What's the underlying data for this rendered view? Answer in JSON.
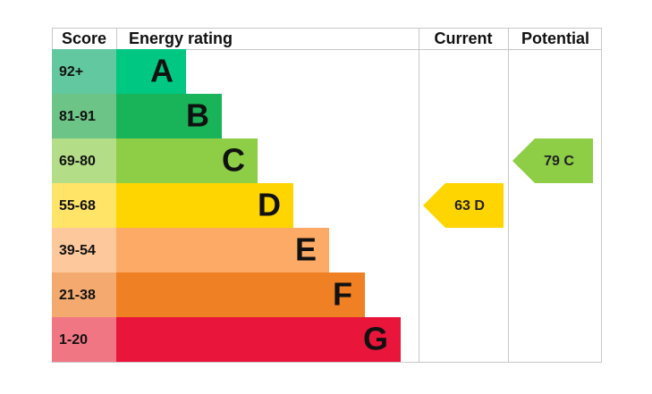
{
  "headers": [
    "Score",
    "Energy rating",
    "Current",
    "Potential"
  ],
  "ratings": [
    {
      "score": "92+",
      "band": "A",
      "color": "#00c781",
      "score_color": "#62c8a0"
    },
    {
      "score": "81-91",
      "band": "B",
      "color": "#19b459",
      "score_color": "#6cc486"
    },
    {
      "score": "69-80",
      "band": "C",
      "color": "#8dce46",
      "score_color": "#b4dd88"
    },
    {
      "score": "55-68",
      "band": "D",
      "color": "#ffd500",
      "score_color": "#ffe468"
    },
    {
      "score": "39-54",
      "band": "E",
      "color": "#fcaa65",
      "score_color": "#fdc89b"
    },
    {
      "score": "21-38",
      "band": "F",
      "color": "#ef8023",
      "score_color": "#f4aa6e"
    },
    {
      "score": "1-20",
      "band": "G",
      "color": "#e9153b",
      "score_color": "#f17684"
    }
  ],
  "current": {
    "value": 63,
    "band": "D"
  },
  "potential": {
    "value": 79,
    "band": "C"
  }
}
